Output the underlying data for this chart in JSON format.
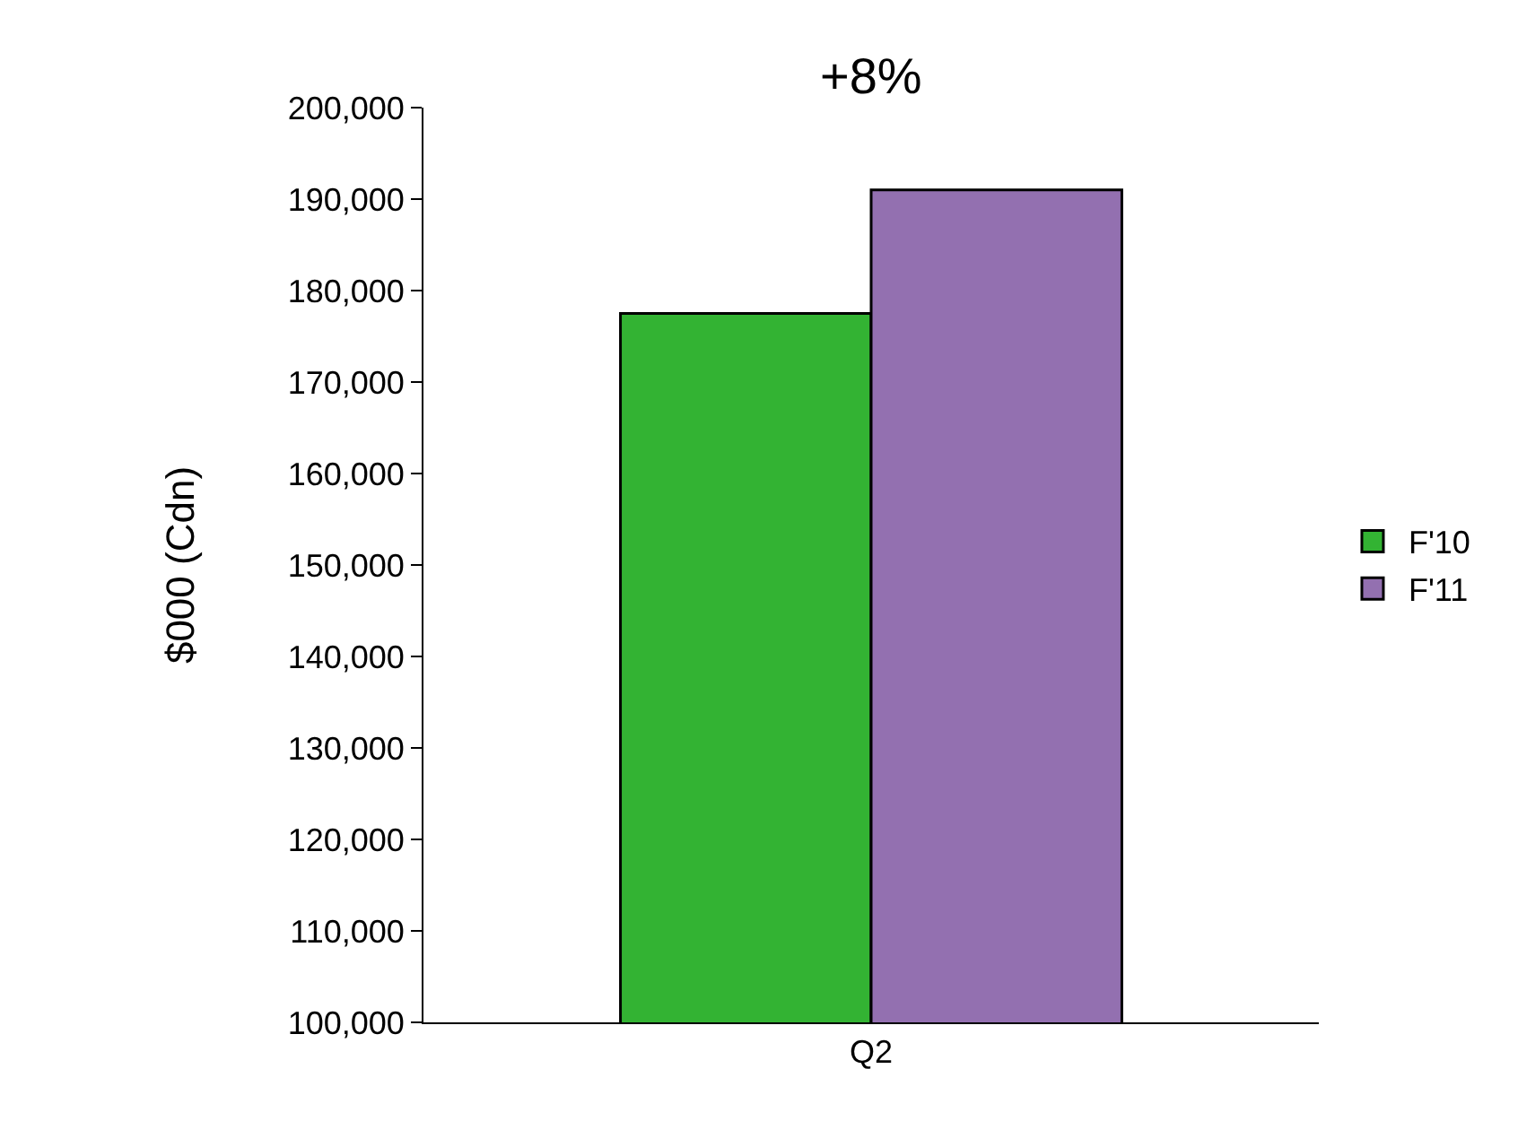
{
  "chart_data": {
    "type": "bar",
    "ylabel": "$000 (Cdn)",
    "categories": [
      "Q2"
    ],
    "series": [
      {
        "name": "F'10",
        "color": "#33b333",
        "values": [
          177500
        ]
      },
      {
        "name": "F'11",
        "color": "#9370b0",
        "values": [
          191000
        ]
      }
    ],
    "annotations": [
      "+8%"
    ],
    "ylim": [
      100000,
      200000
    ],
    "yticks": [
      {
        "value": 100000,
        "label": "100,000"
      },
      {
        "value": 110000,
        "label": "110,000"
      },
      {
        "value": 120000,
        "label": "120,000"
      },
      {
        "value": 130000,
        "label": "130,000"
      },
      {
        "value": 140000,
        "label": "140,000"
      },
      {
        "value": 150000,
        "label": "150,000"
      },
      {
        "value": 160000,
        "label": "160,000"
      },
      {
        "value": 170000,
        "label": "170,000"
      },
      {
        "value": 180000,
        "label": "180,000"
      },
      {
        "value": 190000,
        "label": "190,000"
      },
      {
        "value": 200000,
        "label": "200,000"
      }
    ],
    "legend": "right"
  }
}
